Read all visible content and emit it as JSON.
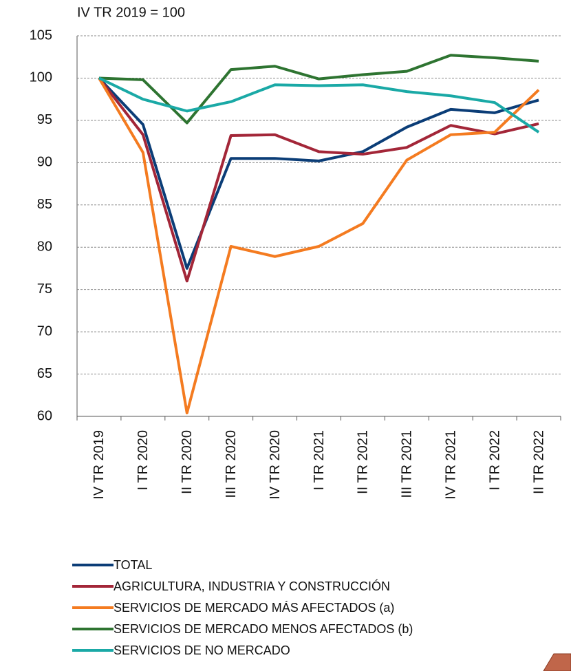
{
  "chart_data": {
    "type": "line",
    "subtitle": "IV TR 2019 = 100",
    "categories": [
      "IV TR 2019",
      "I TR 2020",
      "II TR 2020",
      "III TR 2020",
      "IV TR 2020",
      "I TR 2021",
      "II TR 2021",
      "III TR 2021",
      "IV TR 2021",
      "I TR 2022",
      "II TR 2022"
    ],
    "series": [
      {
        "name": "TOTAL",
        "color": "#0b3d77",
        "values": [
          100,
          94.5,
          77.5,
          90.5,
          90.5,
          90.2,
          91.3,
          94.2,
          96.3,
          95.9,
          97.4
        ]
      },
      {
        "name": "AGRICULTURA, INDUSTRIA Y CONSTRUCCIÓN",
        "color": "#a32638",
        "values": [
          100,
          93.3,
          76.0,
          93.2,
          93.3,
          91.3,
          91.0,
          91.8,
          94.4,
          93.4,
          94.6
        ]
      },
      {
        "name": "SERVICIOS DE MERCADO MÁS AFECTADOS (a)",
        "color": "#f47b20",
        "values": [
          100,
          91.2,
          60.4,
          80.1,
          78.9,
          80.1,
          82.8,
          90.3,
          93.3,
          93.6,
          98.6
        ]
      },
      {
        "name": "SERVICIOS DE MERCADO MENOS AFECTADOS (b)",
        "color": "#2e7431",
        "values": [
          100,
          99.8,
          94.7,
          101.0,
          101.4,
          99.9,
          100.4,
          100.8,
          102.7,
          102.4,
          102.0
        ]
      },
      {
        "name": "SERVICIOS DE NO MERCADO",
        "color": "#1aa9a6",
        "values": [
          100,
          97.5,
          96.1,
          97.2,
          99.2,
          99.1,
          99.2,
          98.4,
          97.9,
          97.1,
          93.6
        ]
      }
    ],
    "ylim": [
      60,
      105
    ],
    "yticks": [
      60,
      65,
      70,
      75,
      80,
      85,
      90,
      95,
      100,
      105
    ],
    "grid": true
  }
}
